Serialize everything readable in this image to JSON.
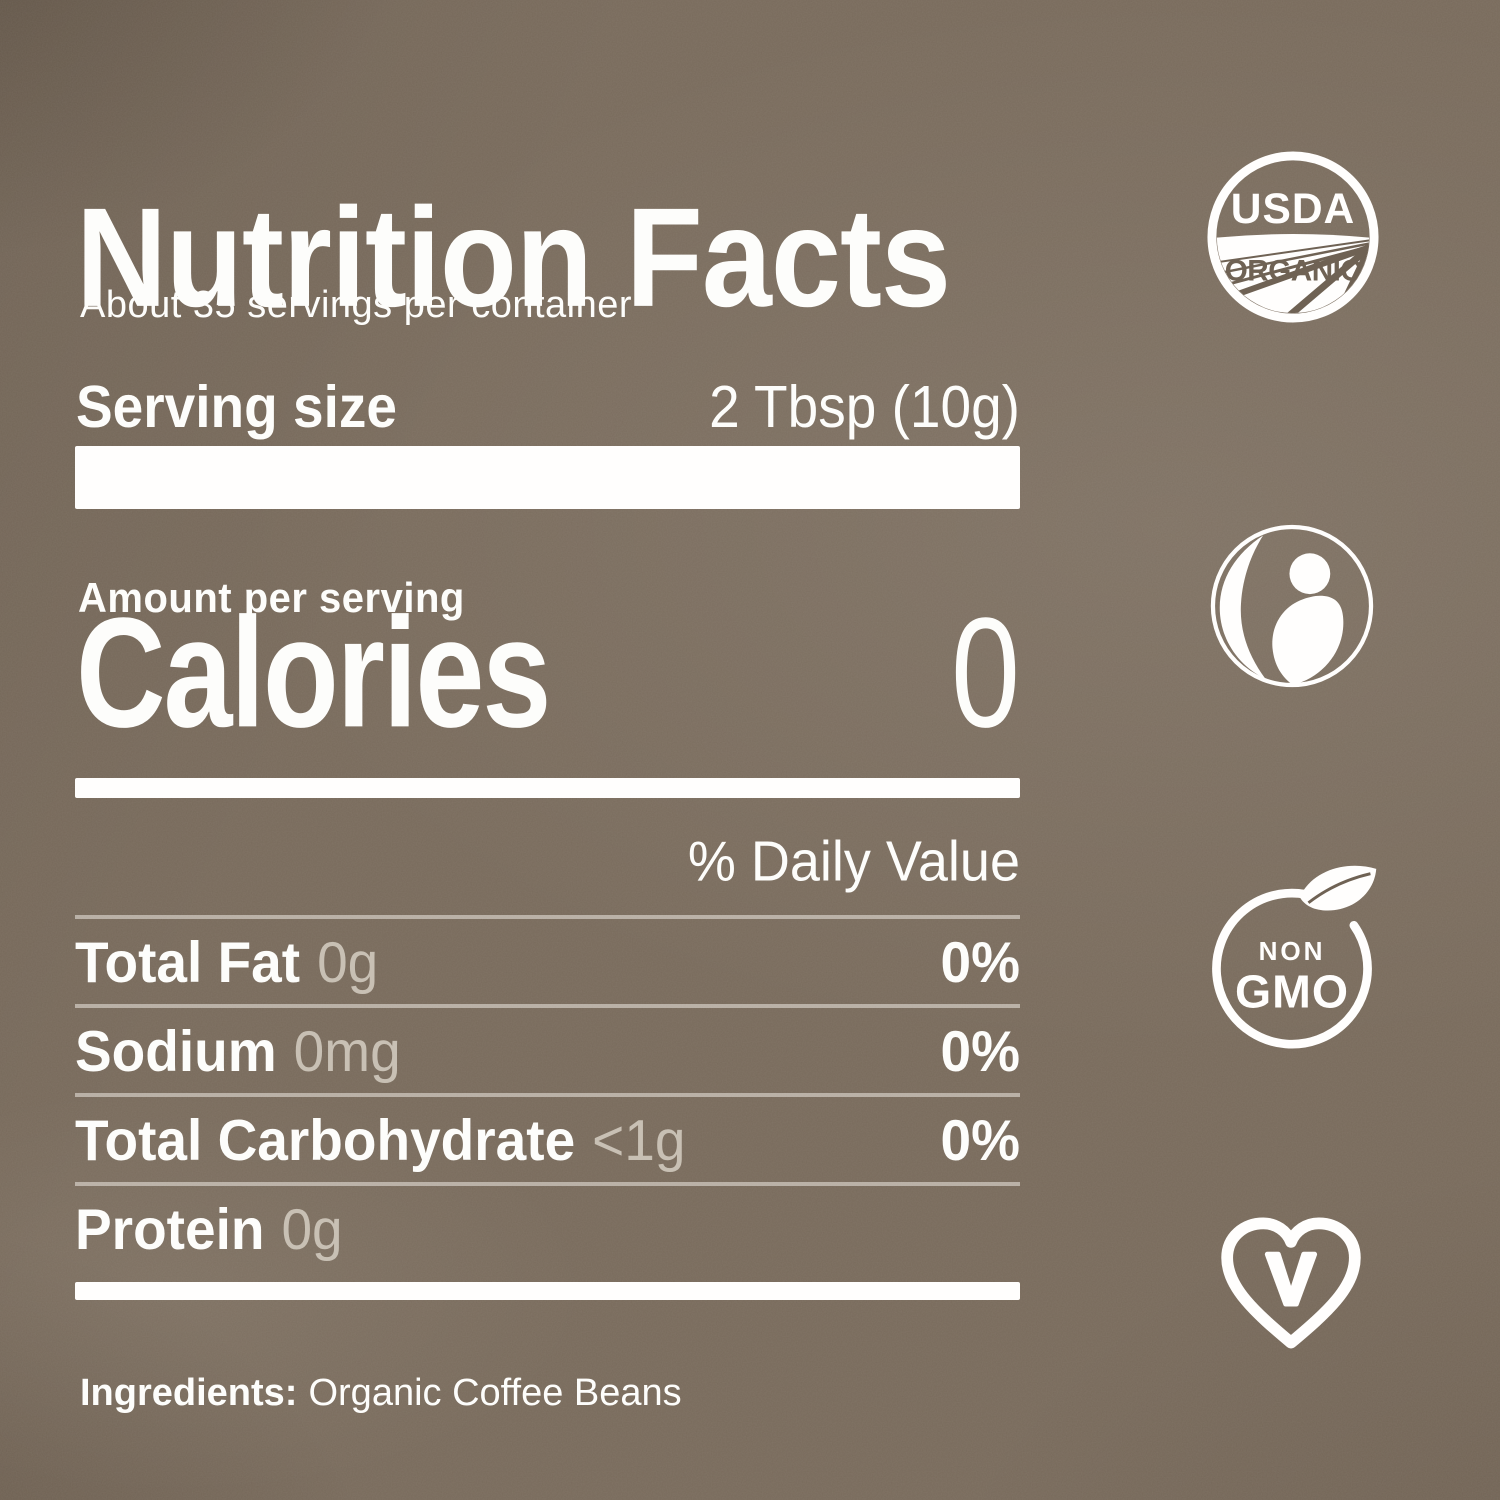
{
  "label": {
    "title": "Nutrition Facts",
    "servings_note": "About 35 servings per container",
    "serving_size": {
      "name": "Serving size",
      "value": "2 Tbsp (10g)"
    },
    "amount_per_serving": "Amount per serving",
    "calories": {
      "name": "Calories",
      "value": "0"
    },
    "daily_value_header": "% Daily Value",
    "nutrients": [
      {
        "name": "Total Fat",
        "amount": "0g",
        "daily_value": "0%"
      },
      {
        "name": "Sodium",
        "amount": "0mg",
        "daily_value": "0%"
      },
      {
        "name": "Total Carbohydrate",
        "amount": "<1g",
        "daily_value": "0%"
      },
      {
        "name": "Protein",
        "amount": "0g",
        "daily_value": ""
      }
    ],
    "ingredients": {
      "name": "Ingredients:",
      "value": "Organic Coffee Beans"
    }
  },
  "badges": {
    "usda_organic": {
      "line1": "USDA",
      "line2": "ORGANIC"
    },
    "fairtrade": {
      "icon": "fairtrade-person-swoosh"
    },
    "non_gmo": {
      "line1": "NON",
      "line2": "GMO"
    },
    "vegan": {
      "letter": "V"
    }
  },
  "colors": {
    "background": "#786a5b",
    "text": "#fdfdfb",
    "muted_value": "#c8c0b4",
    "divider": "#b3aa9d",
    "bar": "#ffffff",
    "seal_detail_brown": "#6f6254"
  }
}
